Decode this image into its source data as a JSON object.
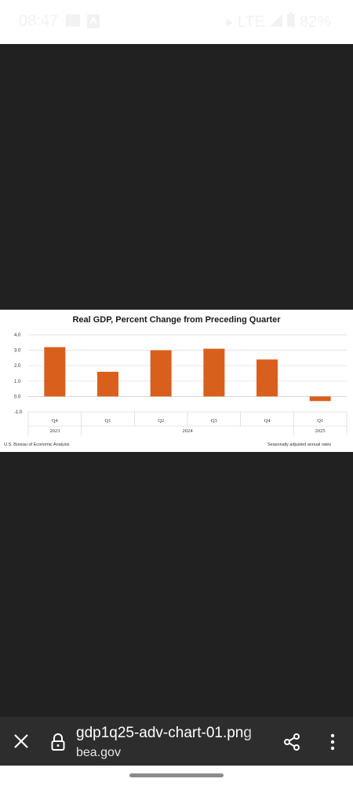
{
  "status_bar": {
    "time": "08:47",
    "network": "LTE",
    "battery": "82%"
  },
  "chart_data": {
    "type": "bar",
    "title": "Real GDP, Percent Change from Preceding Quarter",
    "categories": [
      "Q4",
      "Q1",
      "Q2",
      "Q3",
      "Q4",
      "Q1"
    ],
    "years": [
      "2023",
      "2024",
      "2025"
    ],
    "values": [
      3.2,
      1.6,
      3.0,
      3.1,
      2.4,
      -0.3
    ],
    "ylim": [
      -1.0,
      4.0
    ],
    "yticks": [
      "4.0",
      "3.0",
      "2.0",
      "1.0",
      "0.0",
      "-1.0"
    ],
    "bar_color": "#d95f1c",
    "grid": true,
    "source": "U.S. Bureau of Economic Analysis",
    "note": "Seasonally adjusted annual rates"
  },
  "bottom_bar": {
    "file_name": "gdp1q25-adv-chart-01.png",
    "domain": "bea.gov"
  }
}
